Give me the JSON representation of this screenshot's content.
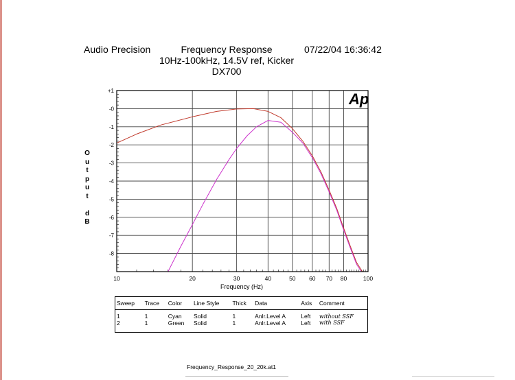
{
  "header": {
    "left": "Audio Precision",
    "title_line1": "Frequency Response",
    "title_line2": "10Hz-100kHz, 14.5V ref, Kicker",
    "title_line3": "DX700",
    "datetime": "07/22/04 16:36:42"
  },
  "logo_text": "Ap",
  "y_axis_label": "Output dB",
  "x_axis_label": "Frequency (Hz)",
  "chart_data": {
    "type": "line",
    "xlabel": "Frequency (Hz)",
    "ylabel": "Output dB",
    "x_scale": "log",
    "xlim": [
      10,
      100
    ],
    "ylim": [
      -9,
      1
    ],
    "x_ticks": [
      10,
      20,
      30,
      40,
      50,
      60,
      70,
      80,
      100
    ],
    "x_tick_labels": [
      "10",
      "20",
      "30",
      "40",
      "50",
      "60",
      "70",
      "80",
      "100"
    ],
    "y_ticks": [
      1,
      0,
      -1,
      -2,
      -3,
      -4,
      -5,
      -6,
      -7,
      -8
    ],
    "y_tick_labels": [
      "+1",
      "-0",
      "-1",
      "-2",
      "-3",
      "-4",
      "-5",
      "-6",
      "-7",
      "-8"
    ],
    "grid": true,
    "series": [
      {
        "color": "#c0392b",
        "x": [
          10,
          12,
          15,
          20,
          25,
          30,
          35,
          40,
          45,
          50,
          55,
          60,
          65,
          70,
          75,
          80,
          85,
          90,
          95
        ],
        "y": [
          -1.9,
          -1.4,
          -0.9,
          -0.45,
          -0.15,
          -0.02,
          0.0,
          -0.15,
          -0.5,
          -1.1,
          -1.8,
          -2.6,
          -3.5,
          -4.5,
          -5.5,
          -6.6,
          -7.6,
          -8.5,
          -9.0
        ]
      },
      {
        "color": "#cc33cc",
        "x": [
          16,
          18,
          20,
          22,
          25,
          28,
          30,
          33,
          36,
          40,
          45,
          50,
          55,
          60,
          65,
          70,
          75,
          80,
          85,
          90,
          94
        ],
        "y": [
          -9.0,
          -7.6,
          -6.4,
          -5.3,
          -3.9,
          -2.8,
          -2.2,
          -1.5,
          -1.0,
          -0.65,
          -0.75,
          -1.3,
          -1.9,
          -2.7,
          -3.6,
          -4.6,
          -5.6,
          -6.7,
          -7.7,
          -8.6,
          -9.0
        ]
      }
    ]
  },
  "trace_table": {
    "headers": [
      "Sweep",
      "Trace",
      "Color",
      "Line Style",
      "Thick",
      "Data",
      "Axis",
      "Comment"
    ],
    "rows": [
      [
        "1",
        "1",
        "Cyan",
        "Solid",
        "1",
        "Anlr.Level A",
        "Left",
        "without SSF"
      ],
      [
        "2",
        "1",
        "Green",
        "Solid",
        "1",
        "Anlr.Level A",
        "Left",
        "with SSF"
      ]
    ]
  },
  "footer_filename": "Frequency_Response_20_20k.at1"
}
